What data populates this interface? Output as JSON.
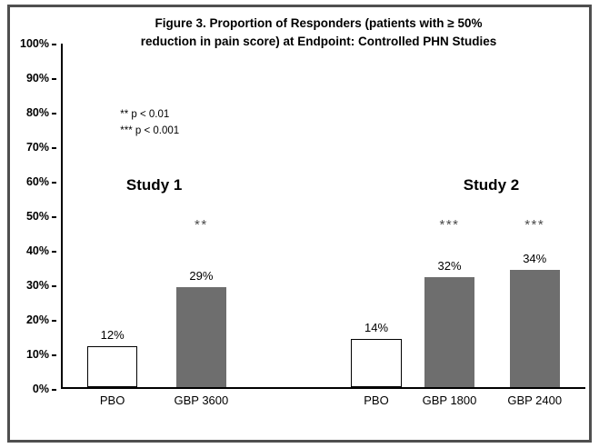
{
  "chart_data": {
    "type": "bar",
    "title_line1": "Figure 3. Proportion of Responders (patients with ≥ 50%",
    "title_line2": "reduction in pain score) at Endpoint: Controlled PHN Studies",
    "xlabel": "",
    "ylabel": "",
    "ylim": [
      0,
      100
    ],
    "grid": false,
    "legend": "none",
    "yticks": [
      "0%",
      "10%",
      "20%",
      "30%",
      "40%",
      "50%",
      "60%",
      "70%",
      "80%",
      "90%",
      "100%"
    ],
    "group_labels": [
      "Study 1",
      "Study 2"
    ],
    "annotations": [
      "** p < 0.01",
      "*** p < 0.001"
    ],
    "bar_width_pct": 9.6,
    "bars": [
      {
        "label": "PBO",
        "group": "Study 1",
        "value": 12,
        "value_label": "12%",
        "sig": "",
        "fill": "#ffffff",
        "outline": true,
        "x_pct": 9.5
      },
      {
        "label": "GBP 3600",
        "group": "Study 1",
        "value": 29,
        "value_label": "29%",
        "sig": "**",
        "fill": "#6e6e6e",
        "outline": false,
        "x_pct": 26.5
      },
      {
        "label": "PBO",
        "group": "Study 2",
        "value": 14,
        "value_label": "14%",
        "sig": "",
        "fill": "#ffffff",
        "outline": true,
        "x_pct": 60.0
      },
      {
        "label": "GBP 1800",
        "group": "Study 2",
        "value": 32,
        "value_label": "32%",
        "sig": "***",
        "fill": "#6e6e6e",
        "outline": false,
        "x_pct": 74.0
      },
      {
        "label": "GBP 2400",
        "group": "Study 2",
        "value": 34,
        "value_label": "34%",
        "sig": "***",
        "fill": "#6e6e6e",
        "outline": false,
        "x_pct": 90.3
      }
    ],
    "colors": {
      "bar_gray": "#6e6e6e",
      "bar_white": "#ffffff",
      "axis": "#000000",
      "frame_border": "#4f4f4f"
    }
  }
}
